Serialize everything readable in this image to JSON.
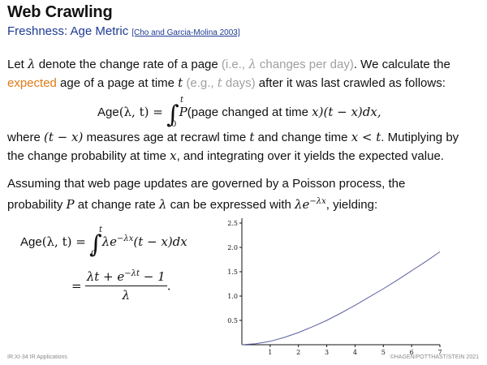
{
  "header": {
    "title": "Web Crawling",
    "subtitle": "Freshness: Age Metric",
    "reference": "[Cho and Garcia-Molina 2003]"
  },
  "para1": {
    "t1": "Let ",
    "lambda": "λ",
    "t2": " denote the change rate of a page ",
    "gray1": "(i.e., ",
    "gray_lambda": "λ",
    "gray2": " changes per day)",
    "t3": ". We calculate the",
    "orange": "expected",
    "t4": " age of a page at time ",
    "t_var": "t",
    "gray3": " (e.g., ",
    "gray_t": "t",
    "gray4": " days)",
    "t5": " after it was last crawled as follows:"
  },
  "eq1": {
    "lhs": "Age",
    "args": "(λ, t) =",
    "upper": "t",
    "lower": "0",
    "p": "P",
    "body": "(page changed at time ",
    "x": "x",
    "tail": ")(t − x)dx,"
  },
  "para2": {
    "t1": "where ",
    "m1": "(t − x)",
    "t2": " measures age at recrawl time ",
    "m2": "t",
    "t3": " and change time ",
    "m3": "x < t",
    "t4": ". Mutiplying by",
    "t5": "the change probability at time ",
    "m4": "x",
    "t6": ", and integrating over it yields the expected value."
  },
  "para3": {
    "t1": "Assuming that web page updates are governed by a Poisson process, the",
    "t2": "probability ",
    "m1": "P",
    "t3": " at change rate ",
    "m2": "λ",
    "t4": " can be expressed with ",
    "m3": "λe",
    "m3sup": "−λx",
    "t5": ", yielding:"
  },
  "eq2": {
    "lhs": "Age",
    "args": "(λ, t) =",
    "upper": "t",
    "lower": "0",
    "body": "λe",
    "sup": "−λx",
    "tail": "(t − x)dx",
    "eqsign": "=",
    "num": "λt + e",
    "numsup": "−λt",
    "numtail": " − 1",
    "den": "λ",
    "dot": "."
  },
  "footer": {
    "left": "IR:XI-34   IR Applications",
    "right": "©HAGEN/POTTHAST/STEIN 2021"
  },
  "chart_data": {
    "type": "line",
    "x_ticks": [
      "1",
      "2",
      "3",
      "4",
      "5",
      "6",
      "7"
    ],
    "y_ticks": [
      "0.5",
      "1.0",
      "1.5",
      "2.0",
      "2.5"
    ],
    "xlim": [
      0,
      7
    ],
    "ylim": [
      0,
      2.6
    ],
    "line_color": "#5a5fa0",
    "series": [
      {
        "x": [
          0,
          0.5,
          1,
          1.5,
          2,
          2.5,
          3,
          3.5,
          4,
          4.5,
          5,
          5.5,
          6,
          6.5,
          7
        ],
        "y": [
          0,
          0.02,
          0.07,
          0.15,
          0.25,
          0.37,
          0.5,
          0.65,
          0.81,
          0.98,
          1.15,
          1.33,
          1.52,
          1.71,
          1.91
        ]
      }
    ]
  }
}
